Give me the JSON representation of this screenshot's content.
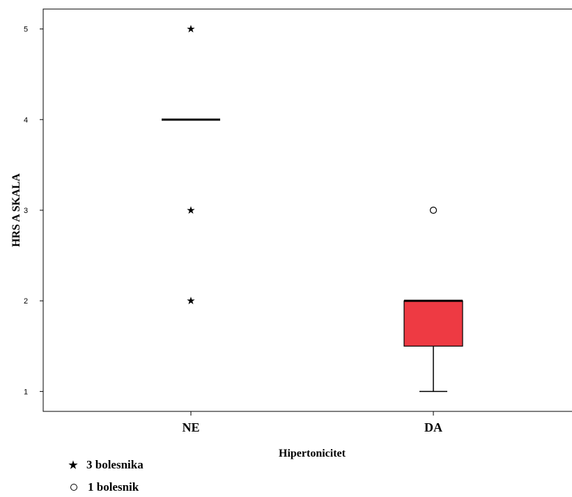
{
  "chart_data": {
    "type": "boxplot",
    "ylabel": "HRS A SKALA",
    "xlabel": "Hipertonicitet",
    "ylim": [
      0.78,
      5.22
    ],
    "yticks": [
      1,
      2,
      3,
      4,
      5
    ],
    "categories": [
      "NE",
      "DA"
    ],
    "boxes": [
      {
        "category": "NE",
        "median": 4,
        "q1": 4,
        "q3": 4,
        "whisker_low": 4,
        "whisker_high": 4,
        "fill": null,
        "extremes": [
          5,
          3,
          2
        ],
        "outliers": []
      },
      {
        "category": "DA",
        "median": 2,
        "q1": 1.5,
        "q3": 2,
        "whisker_low": 1,
        "whisker_high": 2,
        "fill": "#ee3a43",
        "extremes": [],
        "outliers": [
          3
        ]
      }
    ],
    "legend": [
      {
        "symbol": "star-icon",
        "label": "3 bolesnika"
      },
      {
        "symbol": "circle-icon",
        "label": "1 bolesnik"
      }
    ]
  }
}
